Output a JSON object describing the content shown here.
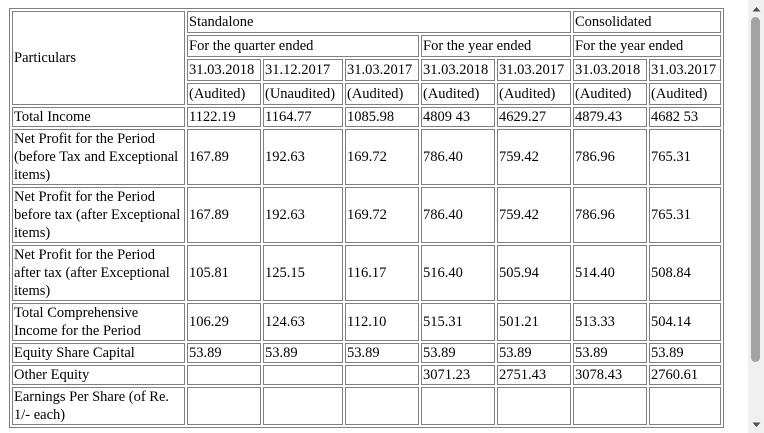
{
  "table": {
    "particulars_header": "Particulars",
    "group_headers": [
      "Standalone",
      "Consolidated"
    ],
    "period_headers": [
      "For the quarter ended",
      "For the year ended",
      "For the year ended"
    ],
    "dates": [
      "31.03.2018",
      "31.12.2017",
      "31.03.2017",
      "31.03.2018",
      "31.03.2017",
      "31.03.2018",
      "31.03.2017"
    ],
    "audit_status": [
      "(Audited)",
      "(Unaudited)",
      "(Audited)",
      "(Audited)",
      "(Audited)",
      "(Audited)",
      "(Audited)"
    ],
    "rows": [
      {
        "label": "Total Income",
        "values": [
          "1122.19",
          "1164.77",
          "1085.98",
          "4809 43",
          "4629.27",
          "4879.43",
          "4682 53"
        ]
      },
      {
        "label": "Net Profit for the Period (before Tax and Exceptional items)",
        "values": [
          "167.89",
          "192.63",
          "169.72",
          "786.40",
          "759.42",
          "786.96",
          "765.31"
        ]
      },
      {
        "label": "Net Profit for the Period before tax (after Exceptional items)",
        "values": [
          "167.89",
          "192.63",
          "169.72",
          "786.40",
          "759.42",
          "786.96",
          "765.31"
        ]
      },
      {
        "label": "Net Profit for the Period after tax (after Exceptional items)",
        "values": [
          "105.81",
          "125.15",
          "116.17",
          "516.40",
          "505.94",
          "514.40",
          "508.84"
        ]
      },
      {
        "label": "Total Comprehensive Income for the Period",
        "values": [
          "106.29",
          "124.63",
          "112.10",
          "515.31",
          "501.21",
          "513.33",
          "504.14"
        ]
      },
      {
        "label": "Equity Share Capital",
        "values": [
          "53.89",
          "53.89",
          "53.89",
          "53.89",
          "53.89",
          "53.89",
          "53.89"
        ]
      },
      {
        "label": "Other Equity",
        "values": [
          "",
          "",
          "",
          "3071.23",
          "2751.43",
          "3078.43",
          "2760.61"
        ]
      },
      {
        "label": "Earnings Per Share (of Re. 1/- each)",
        "values": [
          "",
          "",
          "",
          "",
          "",
          "",
          ""
        ]
      }
    ]
  },
  "scrollbar": {
    "up_icon": "scroll-up-arrow-icon",
    "down_icon": "scroll-down-arrow-icon",
    "position_fraction": 0.0
  }
}
